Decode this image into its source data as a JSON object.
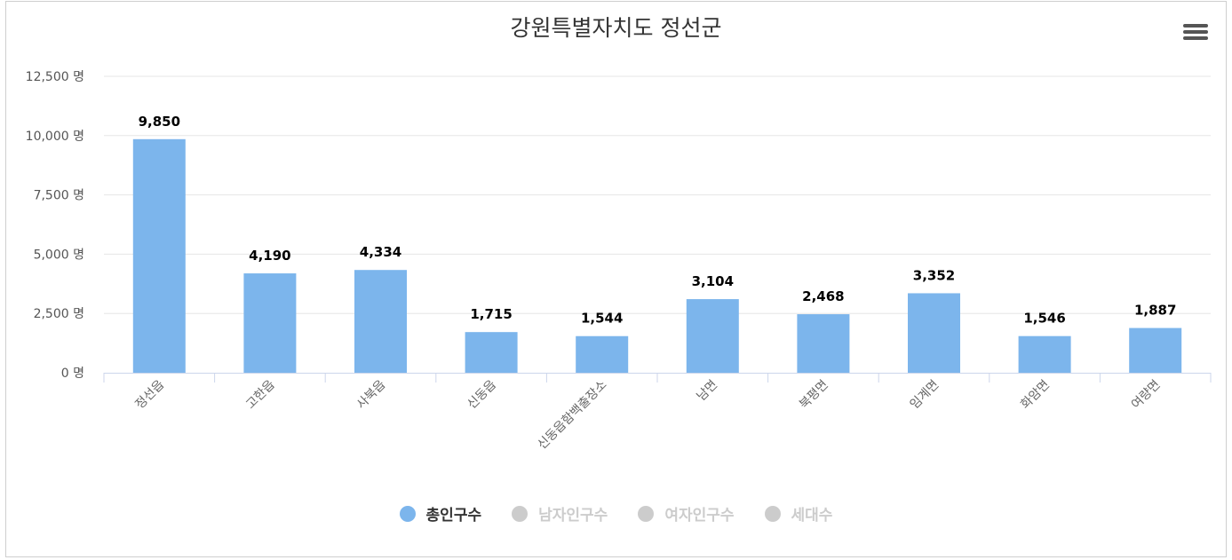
{
  "title": "강원특별자치도 정선군",
  "menu_icon": "hamburger-menu-icon",
  "colors": {
    "bar": "#7cb5ec",
    "inactive": "#cccccc",
    "grid": "#e6e6e6",
    "axis": "#ccd6eb"
  },
  "chart_data": {
    "type": "bar",
    "title": "강원특별자치도 정선군",
    "categories": [
      "정선읍",
      "고한읍",
      "사북읍",
      "신동읍",
      "신동읍함백출장소",
      "남면",
      "북평면",
      "임계면",
      "화암면",
      "여량면"
    ],
    "series": [
      {
        "name": "총인구수",
        "values": [
          9850,
          4190,
          4334,
          1715,
          1544,
          3104,
          2468,
          3352,
          1546,
          1887
        ],
        "visible": true
      }
    ],
    "data_labels": [
      "9,850",
      "4,190",
      "4,334",
      "1,715",
      "1,544",
      "3,104",
      "2,468",
      "3,352",
      "1,546",
      "1,887"
    ],
    "yticks": [
      "0 명",
      "2,500 명",
      "5,000 명",
      "7,500 명",
      "10,000 명",
      "12,500 명"
    ],
    "ytick_values": [
      0,
      2500,
      5000,
      7500,
      10000,
      12500
    ],
    "ylim": [
      0,
      12500
    ],
    "grid": true,
    "legend_position": "bottom-center"
  },
  "legend": [
    {
      "label": "총인구수",
      "active": true,
      "color": "#7cb5ec"
    },
    {
      "label": "남자인구수",
      "active": false,
      "color": "#cccccc"
    },
    {
      "label": "여자인구수",
      "active": false,
      "color": "#cccccc"
    },
    {
      "label": "세대수",
      "active": false,
      "color": "#cccccc"
    }
  ]
}
